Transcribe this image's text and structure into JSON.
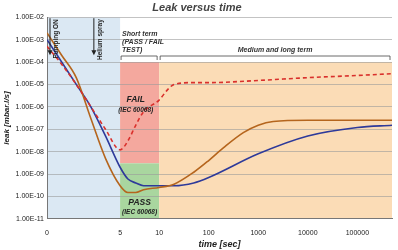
{
  "chart_data": {
    "type": "line",
    "title": "Leak versus time",
    "x_label": "time [sec]",
    "y_label": "leak [mbar.l/s]",
    "log": "y",
    "grid": true,
    "xlim": [
      0,
      500000
    ],
    "xticks": [
      0,
      5,
      10,
      100,
      1000,
      10000,
      100000
    ],
    "ylim": [
      1e-11,
      0.01
    ],
    "yticks": [
      {
        "value": 1e-11,
        "label": "1.00E-11"
      },
      {
        "value": 1e-10,
        "label": "1.00E-10"
      },
      {
        "value": 1e-09,
        "label": "1.00E-09"
      },
      {
        "value": 1e-08,
        "label": "1.00E-08"
      },
      {
        "value": 1e-07,
        "label": "1.00E-07"
      },
      {
        "value": 1e-06,
        "label": "1.00E-06"
      },
      {
        "value": 1e-05,
        "label": "1.00E-05"
      },
      {
        "value": 0.0001,
        "label": "1.00E-04"
      },
      {
        "value": 0.001,
        "label": "1.00E-03"
      },
      {
        "value": 0.01,
        "label": "1.00E-02"
      }
    ],
    "series": [
      {
        "color": "#d9302c",
        "line_style": "dashed",
        "x": [
          0,
          1,
          2,
          3,
          4,
          5,
          6,
          7,
          8,
          10,
          15,
          20,
          50,
          100,
          1000,
          10000,
          100000,
          500000
        ],
        "values": [
          0.0005,
          8e-05,
          1e-05,
          1e-06,
          1e-07,
          1.2e-08,
          3e-08,
          1.5e-07,
          6e-07,
          2e-06,
          6e-06,
          1e-05,
          1.2e-05,
          1.2e-05,
          1.5e-05,
          2e-05,
          2.5e-05,
          3e-05
        ]
      },
      {
        "color": "#b5651d",
        "line_style": "solid",
        "x": [
          0,
          1,
          2,
          3,
          4,
          5,
          6,
          7,
          8,
          10,
          20,
          50,
          100,
          200,
          500,
          1000,
          2000,
          10000,
          100000,
          500000
        ],
        "values": [
          0.002,
          0.0002,
          2e-05,
          3e-07,
          5e-09,
          3e-10,
          1.5e-10,
          1.5e-10,
          2e-10,
          2.5e-10,
          3.5e-10,
          1.2e-09,
          4e-09,
          1.5e-08,
          7e-08,
          1.5e-07,
          2.2e-07,
          2.5e-07,
          2.5e-07,
          2.5e-07
        ]
      },
      {
        "color": "#2e3a9a",
        "line_style": "solid",
        "x": [
          0,
          1,
          2,
          3,
          4,
          5,
          6,
          7,
          8,
          10,
          20,
          50,
          100,
          1000,
          10000,
          100000,
          500000
        ],
        "values": [
          0.001,
          0.0001,
          1e-05,
          1e-06,
          5e-08,
          2e-09,
          6e-10,
          4e-10,
          3e-10,
          3e-10,
          3e-10,
          4e-10,
          7e-10,
          8e-09,
          5e-08,
          1.2e-07,
          1.5e-07
        ]
      }
    ],
    "regions": [
      {
        "x": [
          0,
          5
        ],
        "y": [
          1e-11,
          0.01
        ],
        "color": "#dbe8f3"
      },
      {
        "x": [
          5,
          10
        ],
        "y": [
          3e-09,
          0.0001
        ],
        "color": "#f4a89e"
      },
      {
        "x": [
          5,
          10
        ],
        "y": [
          1e-11,
          3e-09
        ],
        "color": "#a9d69f"
      },
      {
        "x": [
          10,
          500000
        ],
        "y": [
          1e-11,
          0.0001
        ],
        "color": "#fbdcb6"
      }
    ],
    "brackets": [
      {
        "text": [
          "Short term",
          "(PASS / FAIL",
          "TEST)"
        ],
        "x": [
          5,
          10
        ],
        "y": 0.0001
      },
      {
        "text": [
          "Medium and long term"
        ],
        "x": [
          10,
          500000
        ],
        "y": 0.0001
      }
    ],
    "markers": [
      {
        "text": "Pumping ON",
        "x": 0
      },
      {
        "text": "Helium spray",
        "x": 3
      }
    ],
    "annotations": [
      {
        "text": "FAIL",
        "x": 7,
        "y": 2e-06
      },
      {
        "text": "(IEC 60068)",
        "x": 7,
        "y": 7e-07
      },
      {
        "text": "PASS",
        "x": 7.5,
        "y": 5e-11
      },
      {
        "text": "(IEC 60068)",
        "x": 7.5,
        "y": 2e-11
      }
    ]
  }
}
